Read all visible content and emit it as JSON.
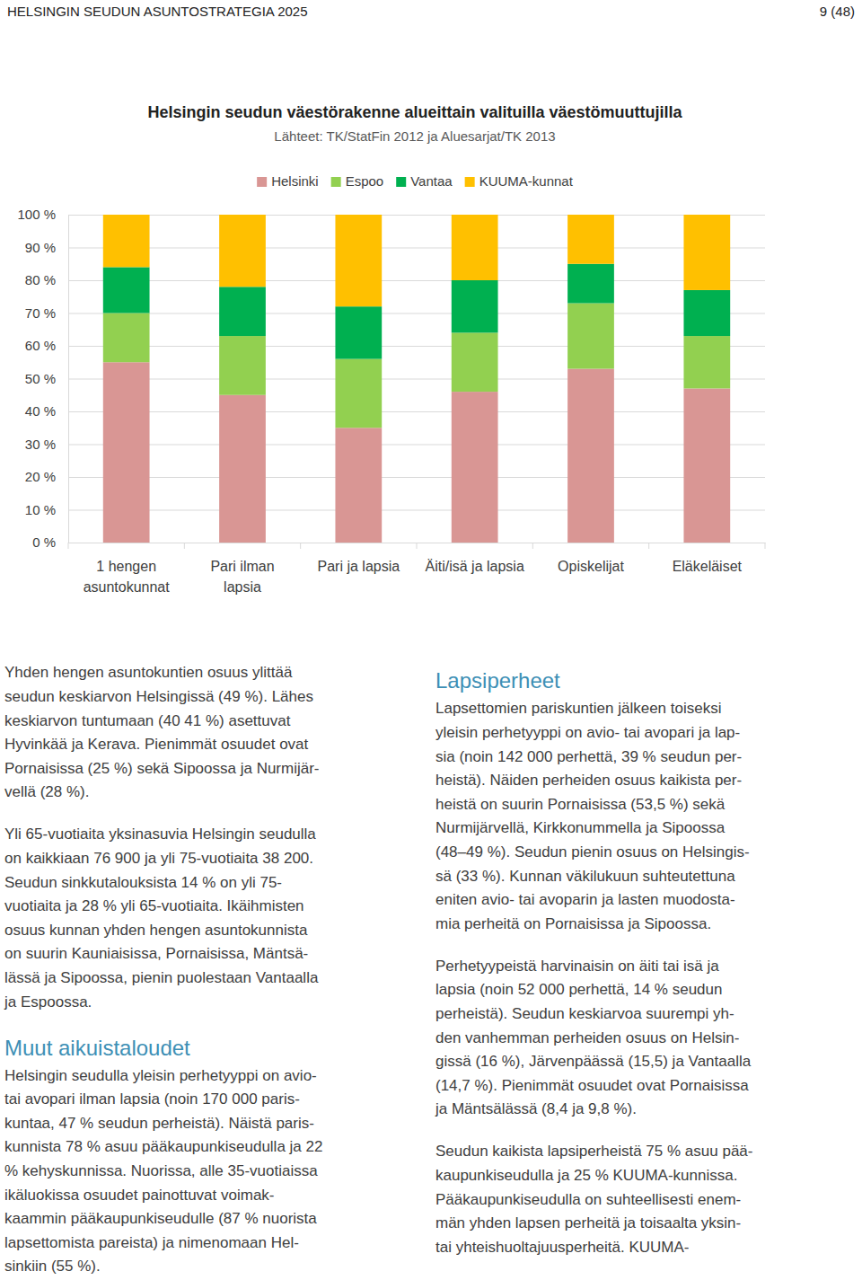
{
  "header": {
    "title": "HELSINGIN SEUDUN ASUNTOSTRATEGIA 2025",
    "page": "9 (48)"
  },
  "chart_data": {
    "type": "bar",
    "stacked": true,
    "title": "Helsingin seudun väestörakenne alueittain valituilla väestömuuttujilla",
    "subtitle": "Lähteet: TK/StatFin 2012 ja Aluesarjat/TK 2013",
    "categories": [
      "1 hengen\nasuntokunnat",
      "Pari ilman\nlapsia",
      "Pari ja lapsia",
      "Äiti/isä ja lapsia",
      "Opiskelijat",
      "Eläkeläiset"
    ],
    "series": [
      {
        "name": "Helsinki",
        "color": "#d99694",
        "values": [
          55,
          45,
          35,
          46,
          53,
          47
        ]
      },
      {
        "name": "Espoo",
        "color": "#92d050",
        "values": [
          15,
          18,
          21,
          18,
          20,
          16
        ]
      },
      {
        "name": "Vantaa",
        "color": "#00b050",
        "values": [
          14,
          15,
          16,
          16,
          12,
          14
        ]
      },
      {
        "name": "KUUMA-kunnat",
        "color": "#ffc000",
        "values": [
          16,
          22,
          28,
          20,
          15,
          23
        ]
      }
    ],
    "ylim": [
      0,
      100
    ],
    "yticks": [
      {
        "value": 0,
        "label": "0 %"
      },
      {
        "value": 10,
        "label": "10 %"
      },
      {
        "value": 20,
        "label": "20 %"
      },
      {
        "value": 30,
        "label": "30 %"
      },
      {
        "value": 40,
        "label": "40 %"
      },
      {
        "value": 50,
        "label": "50 %"
      },
      {
        "value": 60,
        "label": "60 %"
      },
      {
        "value": 70,
        "label": "70 %"
      },
      {
        "value": 80,
        "label": "80 %"
      },
      {
        "value": 90,
        "label": "90 %"
      },
      {
        "value": 100,
        "label": "100 %"
      }
    ],
    "grid": true,
    "legend": "top"
  },
  "columns": [
    [
      {
        "lines": [
          "Yhden hengen asuntokuntien osuus ylittää",
          "seudun keskiarvon Helsingissä (49 %). Lähes",
          "keskiarvon tuntumaan (40 41 %) asettuvat",
          "Hyvinkää ja Kerava. Pienimmät osuudet ovat",
          "Pornaisissa (25 %) sekä Sipoossa ja Nurmijär-",
          "vellä (28 %)."
        ]
      },
      {
        "lines": [
          "Yli 65-vuotiaita yksinasuvia Helsingin seudulla",
          "on kaikkiaan 76 900 ja yli 75-vuotiaita 38 200.",
          "Seudun sinkkutalouksista 14 % on yli 75-",
          "vuotiaita ja 28 % yli 65-vuotiaita. Ikäihmisten",
          "osuus kunnan yhden hengen asuntokunnista",
          "on suurin Kauniaisissa, Pornaisissa, Mäntsä-",
          "lässä ja Sipoossa, pienin puolestaan Vantaalla",
          "ja Espoossa."
        ]
      },
      {
        "heading": "Muut aikuistaloudet"
      },
      {
        "lines": [
          "Helsingin seudulla yleisin perhetyyppi on avio-",
          "tai avopari ilman lapsia (noin 170 000 paris-",
          "kuntaa, 47 % seudun perheistä). Näistä paris-",
          "kunnista 78 % asuu pääkaupunkiseudulla ja 22",
          "% kehyskunnissa. Nuorissa, alle 35-vuotiaissa",
          "ikäluokissa osuudet painottuvat voimak-",
          "kaammin pääkaupunkiseudulle (87 % nuorista",
          "lapsettomista pareista) ja nimenomaan Hel-",
          "sinkiin (55 %)."
        ]
      }
    ],
    [
      {
        "heading": "Lapsiperheet"
      },
      {
        "lines": [
          "Lapsettomien pariskuntien jälkeen toiseksi",
          "yleisin perhetyyppi on avio- tai avopari ja lap-",
          "sia (noin 142 000 perhettä, 39 % seudun per-",
          "heistä). Näiden perheiden osuus kaikista per-",
          "heistä on suurin Pornaisissa (53,5 %) sekä",
          "Nurmijärvellä, Kirkkonummella ja Sipoossa",
          "(48–49 %). Seudun pienin osuus on Helsingis-",
          "sä (33 %). Kunnan väkilukuun suhteutettuna",
          "eniten avio- tai avoparin ja lasten muodosta-",
          "mia perheitä on Pornaisissa ja Sipoossa."
        ]
      },
      {
        "lines": [
          "Perhetyypeistä harvinaisin on äiti tai isä ja",
          "lapsia (noin 52 000 perhettä, 14 % seudun",
          "perheistä). Seudun keskiarvoa suurempi yh-",
          "den vanhemman perheiden osuus on Helsin-",
          "gissä (16 %), Järvenpäässä (15,5) ja Vantaalla",
          "(14,7 %). Pienimmät osuudet ovat Pornaisissa",
          "ja Mäntsälässä (8,4 ja 9,8 %)."
        ]
      },
      {
        "lines": [
          "Seudun kaikista lapsiperheistä 75 % asuu pää-",
          "kaupunkiseudulla ja 25 % KUUMA-kunnissa.",
          "Pääkaupunkiseudulla on suhteellisesti enem-",
          "män yhden lapsen perheitä ja toisaalta yksin-",
          "tai yhteishuoltajuusperheitä. KUUMA-"
        ]
      }
    ]
  ]
}
